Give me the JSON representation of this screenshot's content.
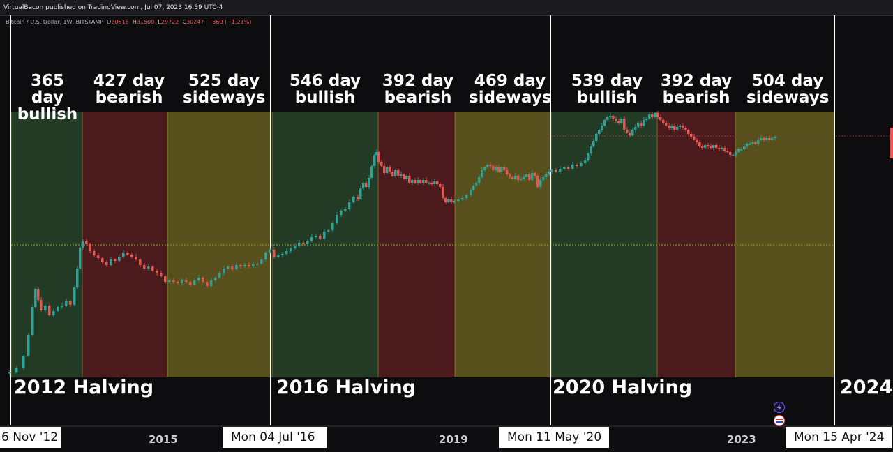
{
  "header": {
    "published": "VirtualBacon published on TradingView.com, Jul 07, 2023 16:39 UTC-4"
  },
  "legend": {
    "symbol": "Bitcoin / U.S. Dollar, 1W, BITSTAMP",
    "o_label": "O",
    "o": "30616",
    "h_label": "H",
    "h": "31500",
    "l_label": "L",
    "l": "29722",
    "c_label": "C",
    "c": "30247",
    "change": "−369 (−1.21%)"
  },
  "colors": {
    "bullish": "#233b25",
    "bearish": "#4a1a1c",
    "sideways": "#57501d",
    "divider": "#ffffff",
    "candle_up": "#26a69a",
    "candle_down": "#ef5350"
  },
  "halvings": [
    {
      "label": "2012 Halving"
    },
    {
      "label": "2016 Halving"
    },
    {
      "label": "2020 Halving"
    },
    {
      "label": "2024"
    }
  ],
  "phases": [
    {
      "line1": "365 day",
      "line2": "bullish"
    },
    {
      "line1": "427 day",
      "line2": "bearish"
    },
    {
      "line1": "525 day",
      "line2": "sideways"
    },
    {
      "line1": "546 day",
      "line2": "bullish"
    },
    {
      "line1": "392 day",
      "line2": "bearish"
    },
    {
      "line1": "469 day",
      "line2": "sideways"
    },
    {
      "line1": "539 day",
      "line2": "bullish"
    },
    {
      "line1": "392 day",
      "line2": "bearish"
    },
    {
      "line1": "504 day",
      "line2": "sideways"
    }
  ],
  "x_axis": {
    "date_labels": [
      "6 Nov '12",
      "Mon 04 Jul '16",
      "Mon 11 May '20",
      "Mon 15 Apr '24"
    ],
    "year_ticks": [
      "2015",
      "2019",
      "2023"
    ]
  },
  "chart_data": {
    "type": "candlestick",
    "interval": "1W",
    "scale": "log",
    "x_axis": "time",
    "series": [
      {
        "name": "Bitcoin / U.S. Dollar",
        "points": [
          {
            "x": "Nov 2012",
            "close": 12
          },
          {
            "x": "Jan 2013",
            "close": 14
          },
          {
            "x": "Apr 2013",
            "close": 110
          },
          {
            "x": "Jul 2013",
            "close": 90
          },
          {
            "x": "Oct 2013",
            "close": 130
          },
          {
            "x": "Dec 2013",
            "close": 1000
          },
          {
            "x": "Apr 2014",
            "close": 450
          },
          {
            "x": "Jul 2014",
            "close": 620
          },
          {
            "x": "Jan 2015",
            "close": 230
          },
          {
            "x": "Jul 2015",
            "close": 280
          },
          {
            "x": "Jan 2016",
            "close": 430
          },
          {
            "x": "Jul 2016",
            "close": 650
          },
          {
            "x": "Jan 2017",
            "close": 1000
          },
          {
            "x": "Jun 2017",
            "close": 2500
          },
          {
            "x": "Dec 2017",
            "close": 19000
          },
          {
            "x": "Mar 2018",
            "close": 8000
          },
          {
            "x": "Jul 2018",
            "close": 7000
          },
          {
            "x": "Dec 2018",
            "close": 3500
          },
          {
            "x": "Jun 2019",
            "close": 12000
          },
          {
            "x": "Mar 2020",
            "close": 5000
          },
          {
            "x": "May 2020",
            "close": 8800
          },
          {
            "x": "Oct 2020",
            "close": 11000
          },
          {
            "x": "Apr 2021",
            "close": 60000
          },
          {
            "x": "Jul 2021",
            "close": 33000
          },
          {
            "x": "Nov 2021",
            "close": 68000
          },
          {
            "x": "Jun 2022",
            "close": 20000
          },
          {
            "x": "Nov 2022",
            "close": 16000
          },
          {
            "x": "Mar 2023",
            "close": 28000
          },
          {
            "x": "Jul 2023",
            "close": 30247
          }
        ]
      }
    ],
    "annotations": [
      "365 day bullish",
      "427 day bearish",
      "525 day sideways",
      "546 day bullish",
      "392 day bearish",
      "469 day sideways",
      "539 day bullish",
      "392 day bearish",
      "504 day sideways",
      "2012 Halving",
      "2016 Halving",
      "2020 Halving",
      "2024"
    ],
    "grid": false
  }
}
